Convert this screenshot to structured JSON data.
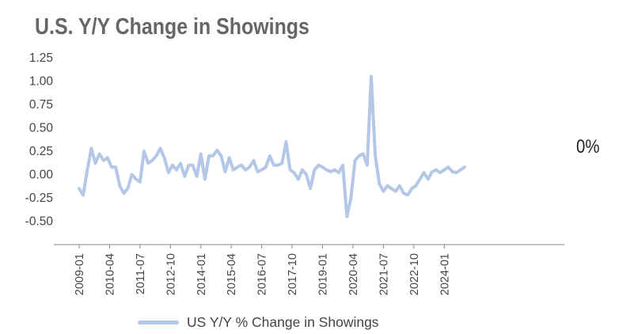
{
  "title": "U.S. Y/Y Change in Showings",
  "annotation": "0%",
  "colors": {
    "series": "#b4c7e7",
    "title": "#666666",
    "axis": "#888888"
  },
  "chart_data": {
    "type": "line",
    "title": "U.S. Y/Y Change in Showings",
    "xlabel": "",
    "ylabel": "",
    "ylim": [
      -0.75,
      1.25
    ],
    "yticks": [
      1.25,
      1.0,
      0.75,
      0.5,
      0.25,
      0.0,
      -0.25,
      -0.5
    ],
    "ytick_labels": [
      "1.25",
      "1.00",
      "0.75",
      "0.50",
      "0.25",
      "0.00",
      "-0.25",
      "-0.50"
    ],
    "xticks": [
      "2009-01",
      "2010-04",
      "2011-07",
      "2012-10",
      "2014-01",
      "2015-04",
      "2016-07",
      "2017-10",
      "2019-01",
      "2020-04",
      "2021-07",
      "2022-10",
      "2024-01"
    ],
    "grid": false,
    "legend": "bottom",
    "series": [
      {
        "name": "US Y/Y % Change in Showings",
        "x": [
          "2009-01",
          "2009-03",
          "2009-05",
          "2009-07",
          "2009-09",
          "2009-11",
          "2010-01",
          "2010-03",
          "2010-05",
          "2010-07",
          "2010-09",
          "2010-11",
          "2011-01",
          "2011-03",
          "2011-05",
          "2011-07",
          "2011-09",
          "2011-11",
          "2012-01",
          "2012-03",
          "2012-05",
          "2012-07",
          "2012-09",
          "2012-11",
          "2013-01",
          "2013-03",
          "2013-05",
          "2013-07",
          "2013-09",
          "2013-11",
          "2014-01",
          "2014-03",
          "2014-05",
          "2014-07",
          "2014-09",
          "2014-11",
          "2015-01",
          "2015-03",
          "2015-05",
          "2015-07",
          "2015-09",
          "2015-11",
          "2016-01",
          "2016-03",
          "2016-05",
          "2016-07",
          "2016-09",
          "2016-11",
          "2017-01",
          "2017-03",
          "2017-05",
          "2017-07",
          "2017-09",
          "2017-11",
          "2018-01",
          "2018-03",
          "2018-05",
          "2018-07",
          "2018-09",
          "2018-11",
          "2019-01",
          "2019-03",
          "2019-05",
          "2019-07",
          "2019-09",
          "2019-11",
          "2020-01",
          "2020-03",
          "2020-04",
          "2020-05",
          "2020-07",
          "2020-09",
          "2020-11",
          "2021-01",
          "2021-03",
          "2021-04",
          "2021-05",
          "2021-07",
          "2021-09",
          "2021-11",
          "2022-01",
          "2022-03",
          "2022-05",
          "2022-07",
          "2022-09",
          "2022-11",
          "2023-01",
          "2023-03",
          "2023-05",
          "2023-07",
          "2023-09",
          "2023-11",
          "2024-01",
          "2024-03",
          "2024-05",
          "2024-07",
          "2024-09",
          "2024-11"
        ],
        "y": [
          -0.15,
          -0.22,
          0.05,
          0.28,
          0.12,
          0.22,
          0.15,
          0.18,
          0.08,
          0.08,
          -0.12,
          -0.2,
          -0.15,
          0.0,
          -0.05,
          -0.08,
          0.25,
          0.12,
          0.15,
          0.2,
          0.28,
          0.18,
          0.02,
          0.1,
          0.05,
          0.12,
          -0.02,
          0.1,
          0.1,
          -0.02,
          0.22,
          -0.05,
          0.2,
          0.2,
          0.26,
          0.2,
          0.03,
          0.18,
          0.05,
          0.08,
          0.1,
          0.05,
          0.08,
          0.15,
          0.03,
          0.05,
          0.08,
          0.2,
          0.1,
          0.1,
          0.12,
          0.35,
          0.05,
          0.02,
          -0.05,
          0.05,
          0.0,
          -0.15,
          0.05,
          0.1,
          0.08,
          0.05,
          0.03,
          0.05,
          0.02,
          0.1,
          -0.45,
          -0.25,
          -0.05,
          0.15,
          0.2,
          0.22,
          0.1,
          1.05,
          0.2,
          0.05,
          -0.1,
          -0.18,
          -0.12,
          -0.15,
          -0.18,
          -0.12,
          -0.2,
          -0.22,
          -0.15,
          -0.12,
          -0.05,
          0.02,
          -0.05,
          0.03,
          0.05,
          0.02,
          0.05,
          0.08,
          0.03,
          0.02,
          0.05,
          0.08
        ]
      }
    ]
  },
  "legend_items": [
    {
      "label": "US Y/Y % Change in Showings"
    }
  ]
}
